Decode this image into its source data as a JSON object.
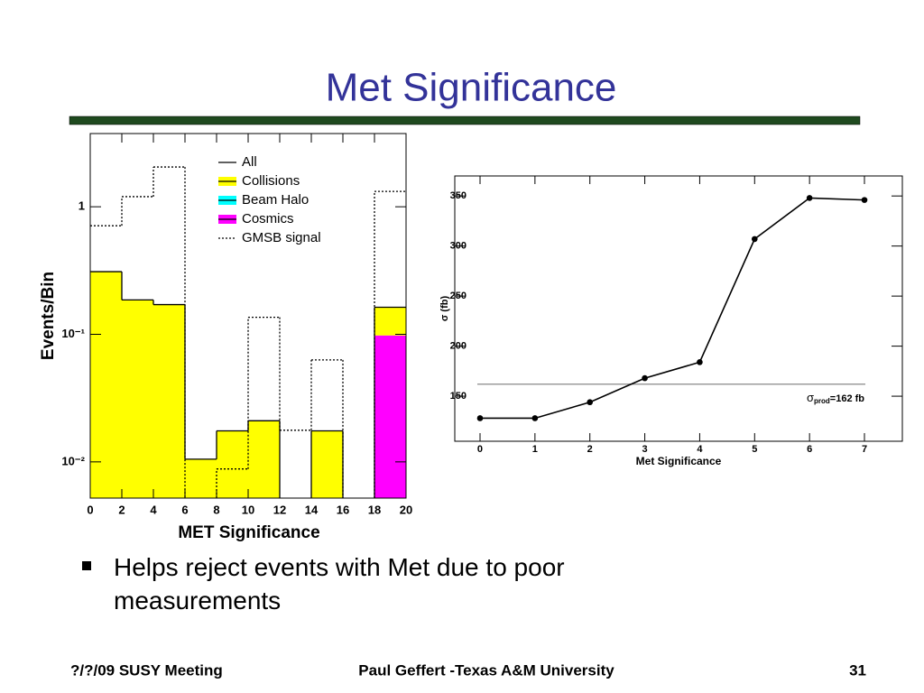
{
  "title": "Met Significance",
  "bullets": [
    "Helps reject events with Met due to poor measurements"
  ],
  "footer": {
    "left": "?/?/09 SUSY Meeting",
    "center": "Paul Geffert -Texas A&M University",
    "right": "31"
  },
  "chart_data": [
    {
      "type": "histogram",
      "xlabel": "MET Significance",
      "ylabel": "Events/Bin",
      "bins": [
        0,
        2,
        4,
        6,
        8,
        10,
        12,
        14,
        16,
        18,
        20
      ],
      "xlim": [
        0,
        20
      ],
      "xticks": [
        0,
        2,
        4,
        6,
        8,
        10,
        12,
        14,
        16,
        18,
        20
      ],
      "ylim": [
        0.0052,
        3.75
      ],
      "log_y": true,
      "yticks": [
        {
          "value": 0.01,
          "label": "10⁻²"
        },
        {
          "value": 0.1,
          "label": "10⁻¹"
        },
        1
      ],
      "stacked": true,
      "legend": "upper-right",
      "series": [
        {
          "name": "All",
          "color": "#000000",
          "style": "line",
          "values": [
            0.31,
            0.186,
            0.171,
            0.0105,
            0.0175,
            0.021,
            null,
            0.0175,
            null,
            0.163
          ]
        },
        {
          "name": "Collisions",
          "color": "#ffff00",
          "style": "fill",
          "values": [
            0.31,
            0.186,
            0.171,
            0.0105,
            0.0175,
            0.021,
            null,
            0.0175,
            null,
            0.065
          ]
        },
        {
          "name": "Beam Halo",
          "color": "#00ffff",
          "style": "fill",
          "values": [
            null,
            null,
            null,
            null,
            null,
            null,
            null,
            null,
            null,
            null
          ]
        },
        {
          "name": "Cosmics",
          "color": "#ff00ff",
          "style": "fill",
          "values": [
            null,
            null,
            null,
            null,
            null,
            null,
            null,
            null,
            null,
            0.098
          ]
        },
        {
          "name": "GMSB signal",
          "color": "#000000",
          "style": "dotted",
          "values": [
            0.71,
            1.2,
            2.05,
            null,
            0.0088,
            0.136,
            0.0177,
            0.063,
            null,
            1.32
          ]
        }
      ]
    },
    {
      "type": "line",
      "xlabel": "Met Significance",
      "ylabel": "σ (fb)",
      "x": [
        0,
        1,
        2,
        3,
        4,
        5,
        6,
        7
      ],
      "values": [
        128,
        128,
        144,
        168,
        184,
        307,
        348,
        346
      ],
      "color": "#000000",
      "xlim": [
        -0.46,
        7.69
      ],
      "xticks": [
        0,
        1,
        2,
        3,
        4,
        5,
        6,
        7
      ],
      "ylim": [
        105,
        370
      ],
      "yticks": [
        150,
        200,
        250,
        300,
        350
      ],
      "reference_line": {
        "value": 162,
        "symbol": "σ",
        "subscript": "prod",
        "label": "=162 fb",
        "color": "#888888"
      }
    }
  ]
}
